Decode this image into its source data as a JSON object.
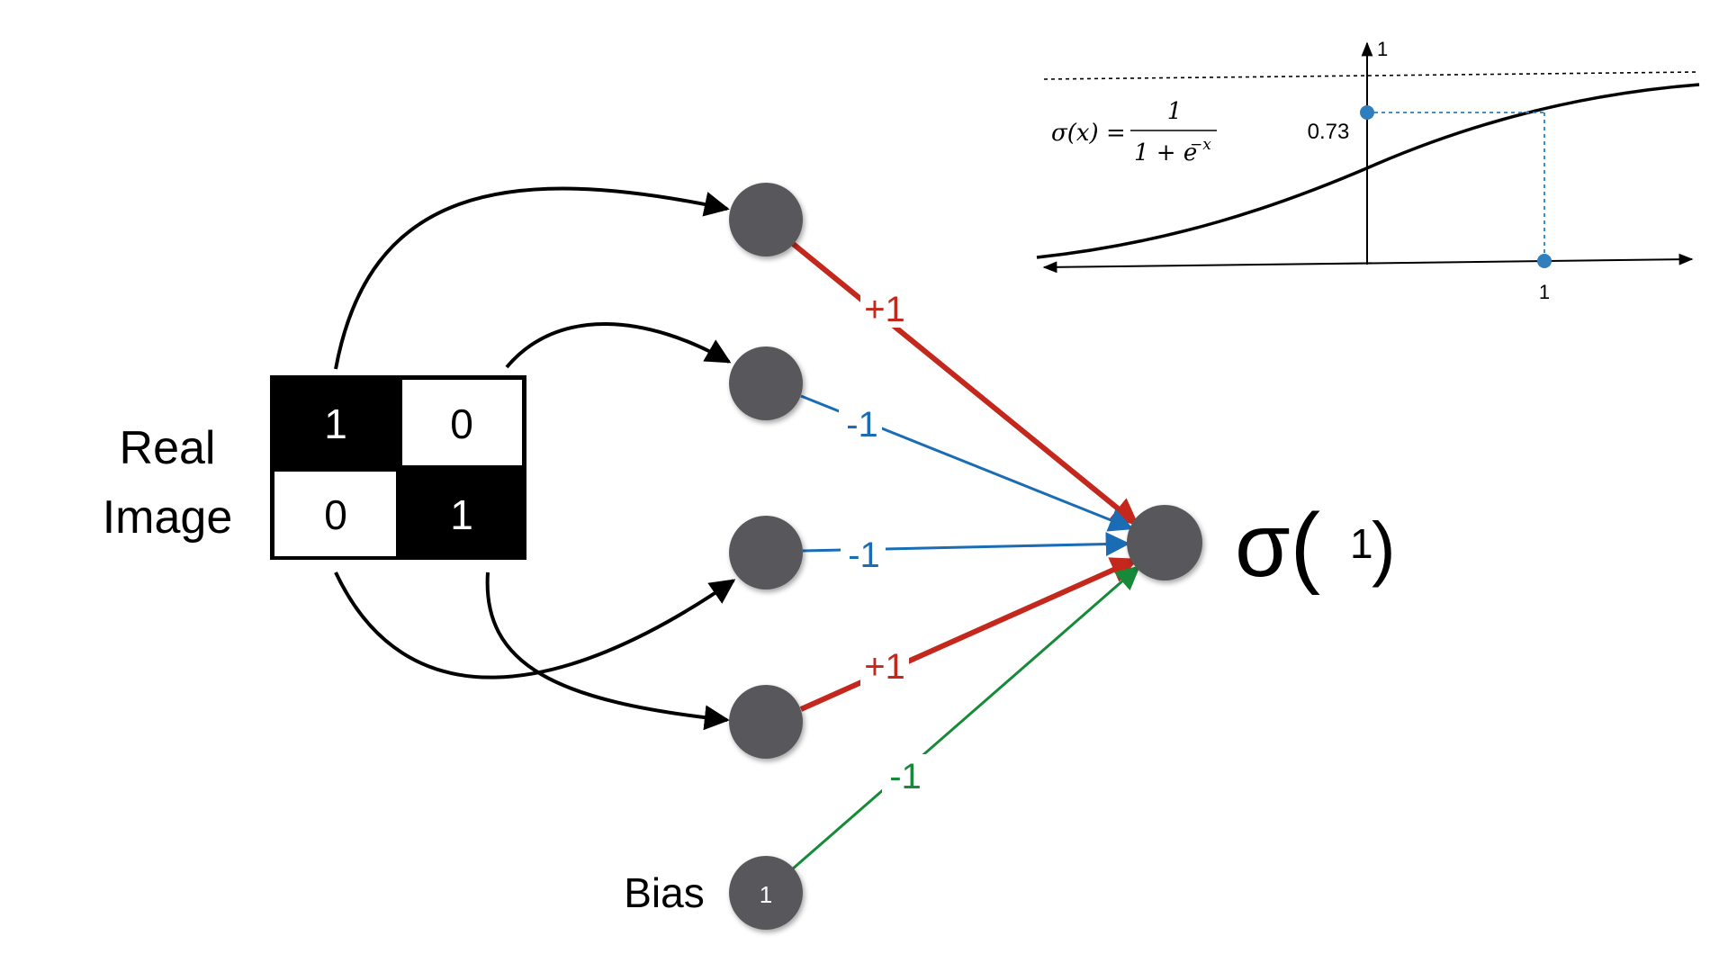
{
  "input": {
    "label_line1": "Real",
    "label_line2": "Image",
    "cells": [
      "1",
      "0",
      "0",
      "1"
    ]
  },
  "weights": {
    "w1": "+1",
    "w2": "-1",
    "w3": "-1",
    "w4": "+1",
    "bias": "-1"
  },
  "bias": {
    "label": "Bias",
    "value": "1"
  },
  "output": {
    "sigma": "σ(",
    "value": "1",
    "close": ")"
  },
  "sigmoid": {
    "formula_lhs": "σ(x) =",
    "formula_num": "1",
    "formula_den": "1 + e",
    "formula_exp": "−x",
    "y_axis_tick": "1",
    "y_value": "0.73",
    "x_value": "1"
  },
  "colors": {
    "node": "#58595b",
    "positive": "#c4281c",
    "negative": "#1a6db5",
    "bias": "#178a3a",
    "marker": "#2f7fbf"
  }
}
